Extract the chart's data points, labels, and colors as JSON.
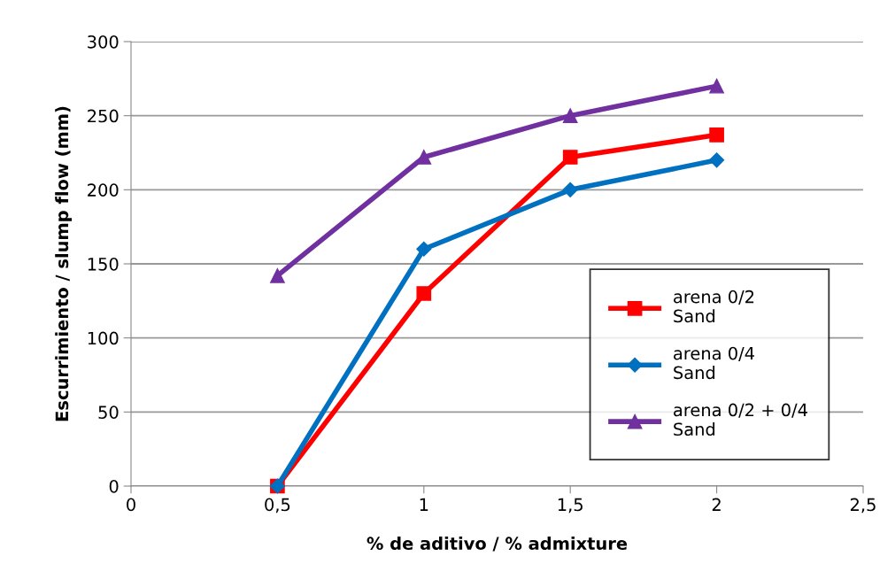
{
  "chart_data": {
    "type": "line",
    "xlabel": "% de aditivo / % admixture",
    "ylabel": "Escurrimiento / slump flow (mm)",
    "x": [
      0.5,
      1,
      1.5,
      2
    ],
    "series": [
      {
        "name": "arena 0/2\nSand",
        "color": "#ff0000",
        "marker": "square",
        "values": [
          0,
          130,
          222,
          237
        ]
      },
      {
        "name": "arena 0/4\nSand",
        "color": "#0070c0",
        "marker": "diamond",
        "values": [
          0,
          160,
          200,
          220
        ]
      },
      {
        "name": "arena 0/2 + 0/4\nSand",
        "color": "#7030a0",
        "marker": "triangle",
        "values": [
          142,
          222,
          250,
          270
        ]
      }
    ],
    "xlim": [
      0,
      2.5
    ],
    "xticks": [
      0,
      {
        "value": 0.5,
        "label": "0,5"
      },
      1,
      {
        "value": 1.5,
        "label": "1,5"
      },
      2,
      {
        "value": 2.5,
        "label": "2,5"
      }
    ],
    "ylim": [
      0,
      300
    ],
    "yticks": [
      0,
      50,
      100,
      150,
      200,
      250,
      300
    ],
    "grid": "y",
    "legend": "bottom right",
    "line_style": "solid"
  }
}
